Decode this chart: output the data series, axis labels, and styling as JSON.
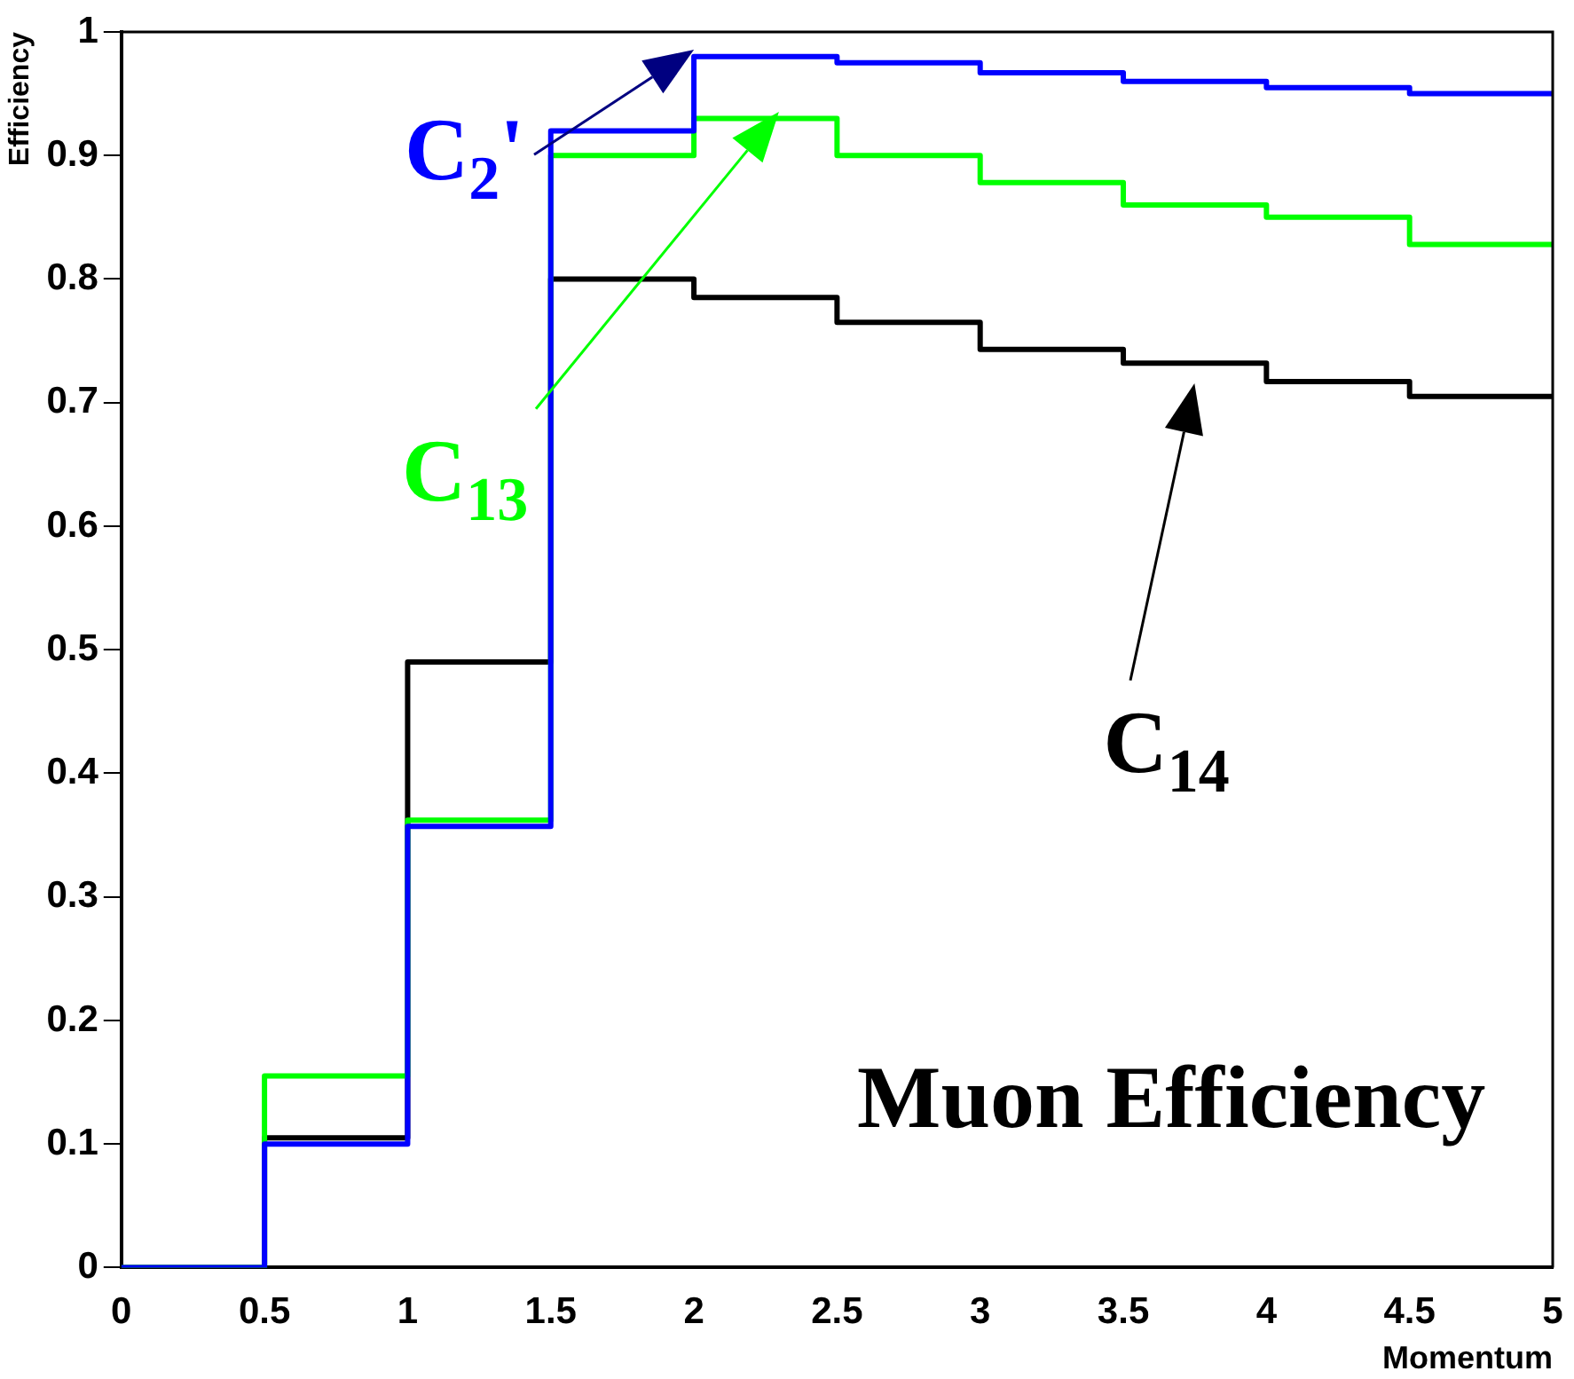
{
  "chart_data": {
    "type": "histogram",
    "title": "Muon Efficiency",
    "xlabel": "Momentum",
    "ylabel": "Efficiency",
    "bins": [
      0,
      0.5,
      1,
      1.5,
      2,
      2.5,
      3,
      3.5,
      4,
      4.5,
      5
    ],
    "series": [
      {
        "name": "C$_{2}$'",
        "color": "#0000ff",
        "values": [
          0,
          0.1,
          0.357,
          0.92,
          0.98,
          0.975,
          0.967,
          0.96,
          0.955,
          0.95
        ]
      },
      {
        "name": "C$_{13}$",
        "color": "#00ff00",
        "values": [
          0,
          0.155,
          0.362,
          0.9,
          0.93,
          0.9,
          0.878,
          0.86,
          0.85,
          0.828
        ]
      },
      {
        "name": "C$_{14}$",
        "color": "#000000",
        "values": [
          0,
          0.105,
          0.49,
          0.8,
          0.785,
          0.765,
          0.743,
          0.732,
          0.717,
          0.705
        ]
      }
    ],
    "xlim": [
      0,
      5
    ],
    "xticks": [
      0,
      0.5,
      1,
      1.5,
      2,
      2.5,
      3,
      3.5,
      4,
      4.5,
      5
    ],
    "ylim": [
      0,
      1
    ],
    "yticks": [
      0,
      0.1,
      0.2,
      0.3,
      0.4,
      0.5,
      0.6,
      0.7,
      0.8,
      0.9,
      1
    ],
    "grid": false,
    "legend": false
  }
}
